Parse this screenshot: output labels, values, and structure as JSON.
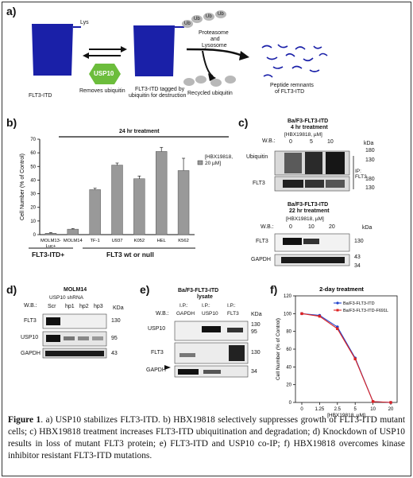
{
  "panel_labels": {
    "a": "a)",
    "b": "b)",
    "c": "c)",
    "d": "d)",
    "e": "e)",
    "f": "f)"
  },
  "panel_a": {
    "lys": "Lys",
    "ub": "Ub",
    "usp10": "USP10",
    "removes": "Removes ubiquitin",
    "flt3itd": "FLT3-ITD",
    "tagged": "FLT3-ITD tagged by",
    "tagged2": "ubiquitin for destruction",
    "proteasome": "Proteasome",
    "and": "and",
    "lysosome": "Lysosome",
    "recycled": "Recycled ubiquitin",
    "peptide": "Peptide remnants",
    "peptide2": "of FLT3-ITD"
  },
  "panel_b": {
    "treatment": "24 hr treatment",
    "legend": "[HBX19818,",
    "legend2": "20 µM]",
    "group1": "FLT3-ITD+",
    "group2": "FLT3 wt or null"
  },
  "panel_c": {
    "title1": "Ba/F3-FLT3-ITD",
    "title2": "4 hr treatment",
    "wb": "W.B.:",
    "conc": "[HBX19818, µM]",
    "doses": [
      "0",
      "5",
      "10"
    ],
    "kda": "kDa",
    "ubiquitin": "Ubiquitin",
    "flt3": "FLT3",
    "ip": "IP:",
    "ip2": "FLT3",
    "m180": "180",
    "m130": "130",
    "title3": "Ba/F3-FLT3-ITD",
    "title4": "22 hr treatment",
    "conc2": "[HBX19818, µM]",
    "doses2": [
      "0",
      "10",
      "20"
    ],
    "wb2": "W.B.:",
    "gapdh": "GAPDH",
    "m43": "43",
    "m34": "34"
  },
  "panel_d": {
    "title": "MOLM14",
    "wb": "W.B.:",
    "shrna": "USP10 shRNA",
    "lanes": [
      "Scr",
      "hp1",
      "hp2",
      "hp3"
    ],
    "kda": "KDa",
    "rows": [
      "FLT3",
      "USP10",
      "GAPDH"
    ],
    "m130": "130",
    "m95": "95",
    "m43": "43"
  },
  "panel_e": {
    "title1": "Ba/F3-FLT3-ITD",
    "title2": "lysate",
    "ip": "I.P.:",
    "wb": "W.B.:",
    "lanes": [
      "GAPDH",
      "USP10",
      "FLT3"
    ],
    "kda": "KDa",
    "rows": [
      "USP10",
      "FLT3",
      "GAPDH"
    ],
    "m130": "130",
    "m95": "95",
    "m34": "34"
  },
  "chart_data": [
    {
      "type": "bar",
      "title": "24 hr treatment",
      "ylabel": "Cell Number (% of Control)",
      "categories": [
        "MOLM13-Luc+",
        "MOLM14",
        "TF-1",
        "U937",
        "K052",
        "HEL",
        "K562"
      ],
      "series": [
        {
          "name": "[HBX19818, 20 µM]",
          "values": [
            1,
            4,
            33,
            51,
            41,
            61,
            47
          ],
          "errors": [
            0.5,
            0.5,
            1,
            1.5,
            2,
            3,
            9
          ]
        }
      ],
      "yticks": [
        0,
        10,
        20,
        30,
        40,
        50,
        60,
        70
      ],
      "ylim": [
        0,
        70
      ],
      "color": "#999999"
    },
    {
      "type": "line",
      "title": "2-day treatment",
      "xlabel": "[HBX19818, µM]",
      "ylabel": "Cell Number (% of Control)",
      "x": [
        "0",
        "1.25",
        "2.5",
        "5",
        "10",
        "20"
      ],
      "series": [
        {
          "name": "Ba/F3-FLT3-ITD",
          "values": [
            100,
            98,
            85,
            50,
            1,
            0
          ],
          "color": "#2244cc"
        },
        {
          "name": "Ba/F3-FLT3-ITD-F691L",
          "values": [
            100,
            97,
            83,
            49,
            1,
            0
          ],
          "color": "#dd2222"
        }
      ],
      "yticks": [
        0,
        20,
        40,
        60,
        80,
        100,
        120
      ],
      "ylim": [
        0,
        120
      ]
    }
  ],
  "caption": {
    "prefix": "Figure 1",
    "text": ". a) USP10 stabilizes FLT3-ITD. b) HBX19818 selectively suppresses growth of FLT3-ITD mutant cells; c) HBX19818 treatment increases FLT3-ITD ubiquitination and degradation; d) Knockdown of USP10 results in loss of mutant FLT3 protein; e) FLT3-ITD and USP10 co-IP; f) HBX19818 overcomes kinase inhibitor resistant FLT3-ITD mutations."
  }
}
